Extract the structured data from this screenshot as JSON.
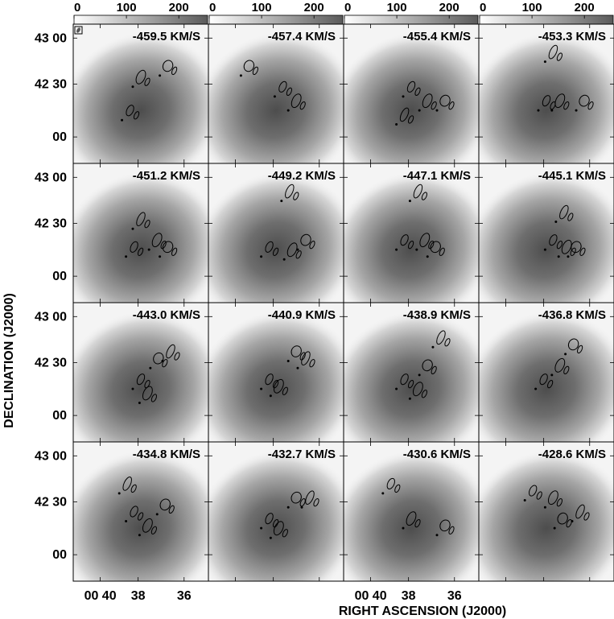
{
  "chart_data": {
    "type": "heatmap",
    "description_kind": "channel maps",
    "colorbar": {
      "ticks": [
        "0",
        "100",
        "200"
      ],
      "min": 0,
      "max": 255
    },
    "xlabel": "RIGHT ASCENSION (J2000)",
    "ylabel": "DECLINATION (J2000)",
    "x_tick_labels": [
      "00 40",
      "38",
      "36"
    ],
    "x_tick_labels_col3": [
      "00 40",
      "38",
      "36"
    ],
    "y_tick_labels": [
      "43 00",
      "42 30",
      "00"
    ],
    "panels": [
      {
        "label": "-459.5 KM/S",
        "blobs": [
          [
            0.42,
            0.62
          ],
          [
            0.5,
            0.38
          ],
          [
            0.7,
            0.3
          ]
        ]
      },
      {
        "label": "-457.4 KM/S",
        "blobs": [
          [
            0.55,
            0.45
          ],
          [
            0.65,
            0.55
          ],
          [
            0.3,
            0.3
          ]
        ]
      },
      {
        "label": "-455.4 KM/S",
        "blobs": [
          [
            0.5,
            0.45
          ],
          [
            0.62,
            0.55
          ],
          [
            0.75,
            0.55
          ],
          [
            0.45,
            0.65
          ]
        ]
      },
      {
        "label": "-453.3 KM/S",
        "blobs": [
          [
            0.5,
            0.55
          ],
          [
            0.6,
            0.55
          ],
          [
            0.78,
            0.55
          ],
          [
            0.55,
            0.2
          ]
        ]
      },
      {
        "label": "-451.2 KM/S",
        "blobs": [
          [
            0.45,
            0.6
          ],
          [
            0.62,
            0.55
          ],
          [
            0.7,
            0.6
          ],
          [
            0.5,
            0.4
          ]
        ]
      },
      {
        "label": "-449.2 KM/S",
        "blobs": [
          [
            0.45,
            0.6
          ],
          [
            0.62,
            0.62
          ],
          [
            0.72,
            0.55
          ],
          [
            0.6,
            0.2
          ]
        ]
      },
      {
        "label": "-447.1 KM/S",
        "blobs": [
          [
            0.45,
            0.55
          ],
          [
            0.6,
            0.55
          ],
          [
            0.68,
            0.6
          ],
          [
            0.55,
            0.2
          ]
        ]
      },
      {
        "label": "-445.1 KM/S",
        "blobs": [
          [
            0.55,
            0.55
          ],
          [
            0.65,
            0.6
          ],
          [
            0.72,
            0.6
          ],
          [
            0.63,
            0.35
          ]
        ]
      },
      {
        "label": "-443.0 KM/S",
        "blobs": [
          [
            0.5,
            0.55
          ],
          [
            0.55,
            0.65
          ],
          [
            0.63,
            0.4
          ],
          [
            0.72,
            0.35
          ]
        ]
      },
      {
        "label": "-440.9 KM/S",
        "blobs": [
          [
            0.45,
            0.55
          ],
          [
            0.52,
            0.6
          ],
          [
            0.65,
            0.35
          ],
          [
            0.72,
            0.4
          ]
        ]
      },
      {
        "label": "-438.9 KM/S",
        "blobs": [
          [
            0.45,
            0.55
          ],
          [
            0.55,
            0.62
          ],
          [
            0.62,
            0.45
          ],
          [
            0.72,
            0.25
          ]
        ]
      },
      {
        "label": "-436.8 KM/S",
        "blobs": [
          [
            0.48,
            0.55
          ],
          [
            0.6,
            0.45
          ],
          [
            0.7,
            0.3
          ]
        ]
      },
      {
        "label": "-434.8 KM/S",
        "blobs": [
          [
            0.45,
            0.5
          ],
          [
            0.55,
            0.6
          ],
          [
            0.68,
            0.45
          ],
          [
            0.4,
            0.3
          ]
        ]
      },
      {
        "label": "-432.7 KM/S",
        "blobs": [
          [
            0.45,
            0.55
          ],
          [
            0.52,
            0.62
          ],
          [
            0.65,
            0.4
          ],
          [
            0.75,
            0.4
          ]
        ]
      },
      {
        "label": "-430.6 KM/S",
        "blobs": [
          [
            0.35,
            0.3
          ],
          [
            0.5,
            0.55
          ],
          [
            0.75,
            0.6
          ]
        ]
      },
      {
        "label": "-428.6 KM/S",
        "blobs": [
          [
            0.4,
            0.35
          ],
          [
            0.55,
            0.4
          ],
          [
            0.62,
            0.55
          ],
          [
            0.75,
            0.5
          ]
        ]
      }
    ]
  }
}
